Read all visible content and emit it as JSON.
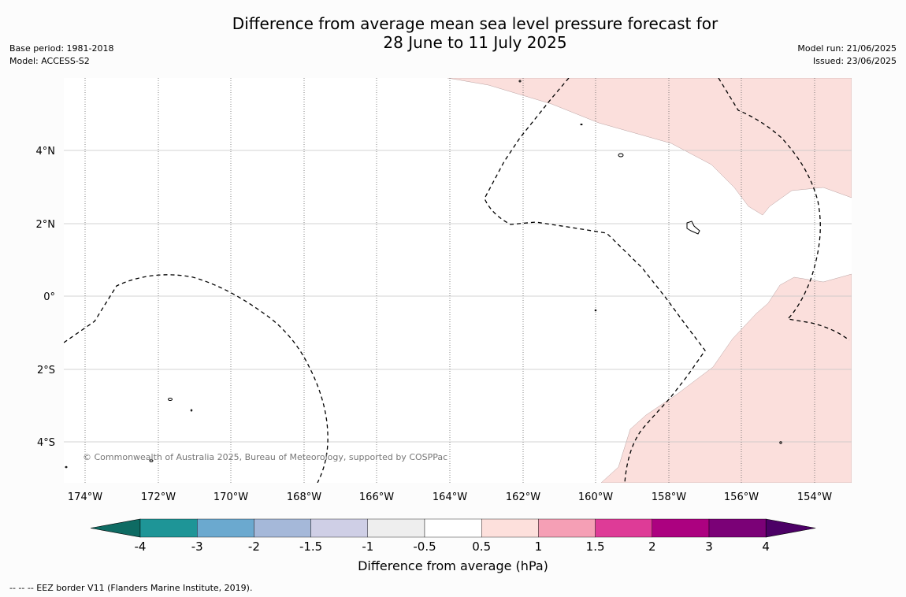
{
  "title": {
    "line1": "Difference from average mean sea level pressure forecast for",
    "line2": "28 June to 11 July 2025"
  },
  "meta_left": {
    "base_period": "Base period: 1981-2018",
    "model": "Model: ACCESS-S2"
  },
  "meta_right": {
    "model_run": "Model run: 21/06/2025",
    "issued": "Issued: 23/06/2025"
  },
  "map": {
    "lon_range": [
      -174.6,
      -153.0
    ],
    "lat_range": [
      -5.0,
      5.7
    ],
    "lon_ticks": [
      "174°W",
      "172°W",
      "170°W",
      "168°W",
      "166°W",
      "164°W",
      "162°W",
      "160°W",
      "158°W",
      "156°W",
      "154°W"
    ],
    "lat_ticks": [
      "4°N",
      "2°N",
      "0°",
      "2°S",
      "4°S"
    ],
    "fill_color": "#fbdfdc",
    "copyright": "© Commonwealth of Australia 2025, Bureau of Meteorology, supported by COSPPac"
  },
  "colorbar": {
    "tick_labels": [
      "-4",
      "-3",
      "-2",
      "-1.5",
      "-1",
      "-0.5",
      "0.5",
      "1",
      "1.5",
      "2",
      "3",
      "4"
    ],
    "colors": [
      "#0e6b63",
      "#1e9597",
      "#6ba9cf",
      "#a5b8d9",
      "#cfcfe6",
      "#eeeeee",
      "#ffffff",
      "#fde0dc",
      "#f59fb5",
      "#de3b97",
      "#ac0180",
      "#7b0177",
      "#4c0066"
    ],
    "label": "Difference from average (hPa)"
  },
  "footnote": "--  --  -- EEZ border V11 (Flanders Marine Institute, 2019)."
}
